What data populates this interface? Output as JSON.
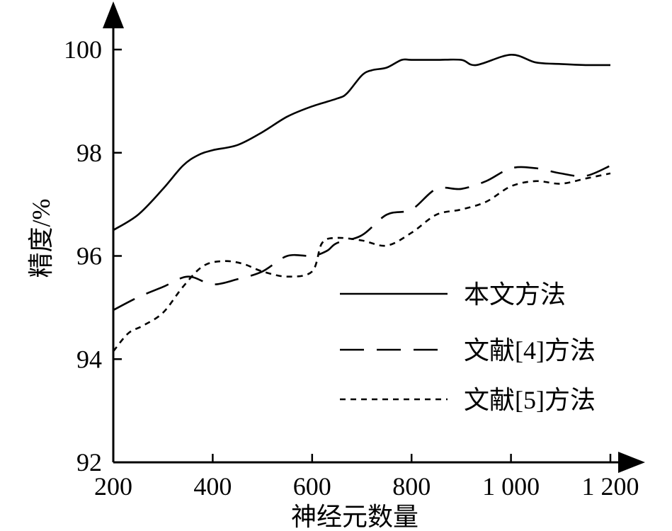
{
  "chart_data": {
    "type": "line",
    "title": "",
    "xlabel": "神经元数量",
    "ylabel": "精度/%",
    "xlim": [
      200,
      1200
    ],
    "ylim": [
      92,
      100
    ],
    "xticks": [
      200,
      400,
      600,
      800,
      1000,
      1200
    ],
    "xtick_labels": [
      "200",
      "400",
      "600",
      "800",
      "1 000",
      "1 200"
    ],
    "yticks": [
      92,
      94,
      96,
      98,
      100
    ],
    "ytick_labels": [
      "92",
      "94",
      "96",
      "98",
      "100"
    ],
    "grid": false,
    "legend_position": "right",
    "series": [
      {
        "name": "本文方法",
        "style": "solid",
        "x": [
          200,
          250,
          300,
          340,
          370,
          400,
          450,
          500,
          550,
          600,
          650,
          670,
          700,
          720,
          750,
          780,
          800,
          850,
          900,
          930,
          1000,
          1050,
          1100,
          1150,
          1200
        ],
        "y": [
          96.5,
          96.8,
          97.3,
          97.75,
          97.95,
          98.05,
          98.15,
          98.4,
          98.7,
          98.9,
          99.05,
          99.15,
          99.5,
          99.6,
          99.65,
          99.8,
          99.8,
          99.8,
          99.8,
          99.7,
          99.9,
          99.75,
          99.72,
          99.7,
          99.7
        ]
      },
      {
        "name": "文献[4]方法",
        "style": "dashed",
        "x": [
          200,
          250,
          300,
          350,
          400,
          450,
          500,
          550,
          600,
          630,
          650,
          700,
          750,
          800,
          850,
          900,
          950,
          1000,
          1050,
          1100,
          1150,
          1200
        ],
        "y": [
          94.95,
          95.2,
          95.4,
          95.6,
          95.45,
          95.55,
          95.7,
          96.0,
          96.0,
          96.1,
          96.25,
          96.4,
          96.8,
          96.9,
          97.3,
          97.3,
          97.45,
          97.7,
          97.7,
          97.6,
          97.55,
          97.75
        ]
      },
      {
        "name": "文献[5]方法",
        "style": "dotted",
        "x": [
          200,
          230,
          260,
          300,
          340,
          380,
          420,
          460,
          500,
          550,
          600,
          620,
          650,
          700,
          750,
          800,
          850,
          900,
          950,
          1000,
          1050,
          1100,
          1150,
          1200
        ],
        "y": [
          94.15,
          94.5,
          94.65,
          94.9,
          95.4,
          95.8,
          95.9,
          95.85,
          95.7,
          95.6,
          95.7,
          96.25,
          96.35,
          96.3,
          96.2,
          96.45,
          96.8,
          96.9,
          97.05,
          97.35,
          97.45,
          97.4,
          97.5,
          97.6
        ]
      }
    ]
  }
}
